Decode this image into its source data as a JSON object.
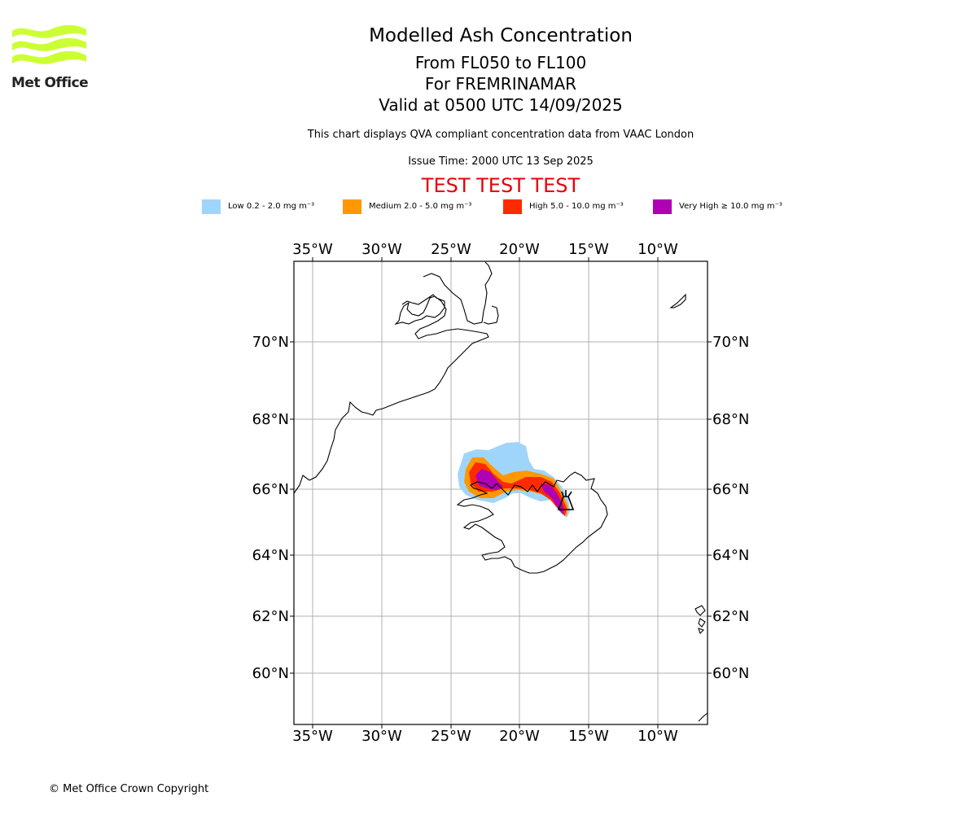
{
  "brand": {
    "logo_text": "Met Office",
    "logo_color": "#ccff33"
  },
  "header": {
    "title": "Modelled Ash Concentration",
    "level_range": "From FL050 to FL100",
    "region": "For FREMRINAMAR",
    "valid_time": "Valid at 0500 UTC 14/09/2025",
    "description": "This chart displays QVA compliant concentration data from VAAC London",
    "issue_time": "Issue Time: 2000 UTC 13 Sep 2025",
    "test_banner": "TEST TEST TEST",
    "test_banner_color": "#e8000b"
  },
  "legend": {
    "items": [
      {
        "label": "Low 0.2 - 2.0 mg m⁻³",
        "color": "#a0d5fb"
      },
      {
        "label": "Medium 2.0 - 5.0 mg m⁻³",
        "color": "#ff9800"
      },
      {
        "label": "High 5.0 - 10.0 mg m⁻³",
        "color": "#ff2a00"
      },
      {
        "label": "Very High ≥ 10.0 mg m⁻³",
        "color": "#b000b5"
      }
    ]
  },
  "map": {
    "longitude_ticks": [
      "35°W",
      "30°W",
      "25°W",
      "20°W",
      "15°W",
      "10°W"
    ],
    "latitude_ticks": [
      "70°N",
      "68°N",
      "66°N",
      "64°N",
      "62°N",
      "60°N"
    ],
    "volcano_marker": "volcano-icon",
    "gridlines": true
  },
  "footer": {
    "copyright": "© Met Office Crown Copyright"
  }
}
